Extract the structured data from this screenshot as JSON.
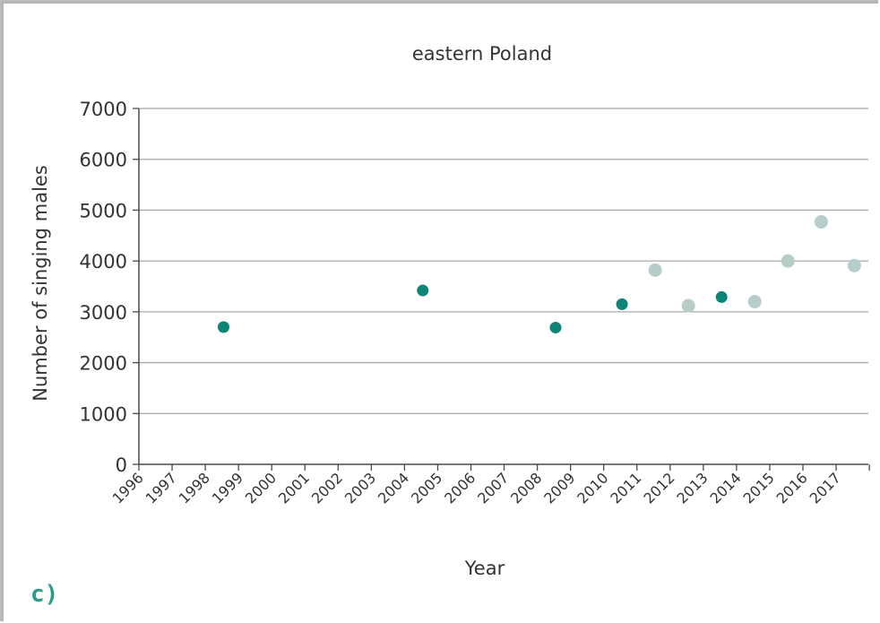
{
  "panel_label": "c)",
  "chart_data": {
    "type": "scatter",
    "title": "eastern Poland",
    "xlabel": "Year",
    "ylabel": "Number of singing males",
    "ylim": [
      0,
      7000
    ],
    "yticks": [
      "0",
      "1000",
      "2000",
      "3000",
      "4000",
      "5000",
      "6000",
      "7000"
    ],
    "xticks": [
      "1996",
      "1997",
      "1998",
      "1999",
      "2000",
      "2001",
      "2002",
      "2003",
      "2004",
      "2005",
      "2006",
      "2007",
      "2008",
      "2009",
      "2010",
      "2011",
      "2012",
      "2013",
      "2014",
      "2015",
      "2016",
      "2017"
    ],
    "grid": "horizontal",
    "colors": {
      "dark": "#0d8576",
      "light": "#b7cdca",
      "grid": "#a8a8a8",
      "axis": "#4a4a4a"
    },
    "series": [
      {
        "style": "dark",
        "points": [
          {
            "x": 1997,
            "y": 2700
          },
          {
            "x": 2003,
            "y": 3420
          },
          {
            "x": 2007,
            "y": 2690
          },
          {
            "x": 2009,
            "y": 3150
          },
          {
            "x": 2012,
            "y": 3290
          }
        ]
      },
      {
        "style": "light",
        "points": [
          {
            "x": 2010,
            "y": 3820
          },
          {
            "x": 2011,
            "y": 3120
          },
          {
            "x": 2013,
            "y": 3200
          },
          {
            "x": 2014,
            "y": 4000
          },
          {
            "x": 2015,
            "y": 4770
          },
          {
            "x": 2016,
            "y": 3910
          }
        ]
      }
    ]
  }
}
